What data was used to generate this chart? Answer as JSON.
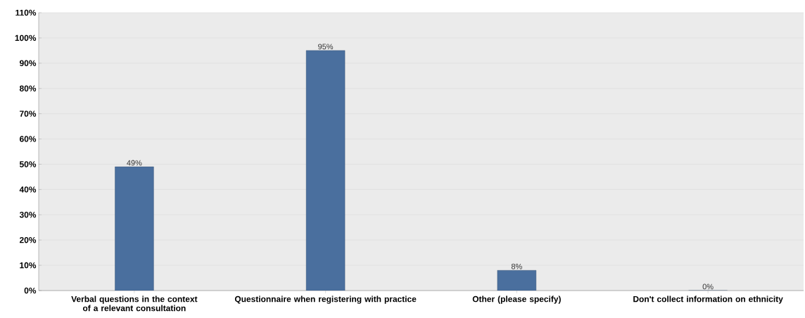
{
  "chart_data": {
    "type": "bar",
    "categories": [
      "Verbal questions in the context of a relevant consultation",
      "Questionnaire when registering with practice",
      "Other (please specify)",
      "Don't collect information on ethnicity"
    ],
    "values": [
      49,
      95,
      8,
      0
    ],
    "value_labels": [
      "49%",
      "95%",
      "8%",
      "0%"
    ],
    "color": "#4a6f9e",
    "ylim": [
      0,
      110
    ],
    "yticks": [
      {
        "value": 0,
        "label": "0%"
      },
      {
        "value": 10,
        "label": "10%"
      },
      {
        "value": 20,
        "label": "20%"
      },
      {
        "value": 30,
        "label": "30%"
      },
      {
        "value": 40,
        "label": "40%"
      },
      {
        "value": 50,
        "label": "50%"
      },
      {
        "value": 60,
        "label": "60%"
      },
      {
        "value": 70,
        "label": "70%"
      },
      {
        "value": 80,
        "label": "80%"
      },
      {
        "value": 90,
        "label": "90%"
      },
      {
        "value": 100,
        "label": "100%"
      },
      {
        "value": 110,
        "label": "110%"
      }
    ],
    "grid": "y"
  }
}
